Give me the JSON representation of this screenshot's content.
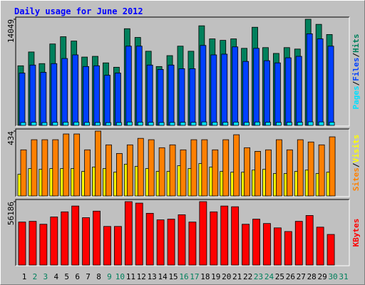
{
  "chart_data": [
    {
      "type": "bar",
      "title": "Daily usage for June 2012",
      "legend_separator": "/",
      "ylim": [
        0,
        14049
      ],
      "yticks": [
        14049
      ],
      "series": [
        {
          "name": "Pages",
          "color": "#00e0ff",
          "values": [
            480,
            510,
            470,
            500,
            520,
            530,
            490,
            480,
            460,
            470,
            540,
            520,
            500,
            480,
            490,
            510,
            500,
            550,
            520,
            510,
            530,
            500,
            540,
            510,
            490,
            500,
            510,
            560,
            550,
            520,
            null
          ]
        },
        {
          "name": "Files",
          "color": "#0040ff",
          "values": [
            6977,
            8028,
            7072,
            8219,
            8888,
            9366,
            7837,
            7932,
            6690,
            6977,
            10513,
            10513,
            8028,
            7455,
            8028,
            7550,
            7550,
            10609,
            9366,
            9462,
            10417,
            8506,
            10226,
            8601,
            8315,
            8984,
            9175,
            12138,
            11469,
            10513,
            null
          ]
        },
        {
          "name": "Hits",
          "color": "#00805c",
          "values": [
            7932,
            9748,
            8219,
            10800,
            11755,
            11182,
            9079,
            9175,
            8315,
            7741,
            12807,
            11660,
            9844,
            7837,
            9270,
            10513,
            9844,
            13189,
            11469,
            11277,
            11469,
            10226,
            12998,
            10322,
            9557,
            10322,
            10131,
            14049,
            13380,
            12042,
            null
          ]
        }
      ]
    },
    {
      "type": "bar",
      "legend_separator": "/",
      "ylim": [
        0,
        434
      ],
      "yticks": [
        434
      ],
      "series": [
        {
          "name": "Sites",
          "color": "#ff8000",
          "values": [
            310,
            377,
            377,
            377,
            415,
            415,
            310,
            434,
            343,
            286,
            343,
            386,
            377,
            324,
            343,
            310,
            377,
            377,
            310,
            377,
            410,
            324,
            300,
            310,
            377,
            310,
            377,
            362,
            343,
            396,
            null
          ]
        },
        {
          "name": "Visits",
          "color": "#ffff00",
          "values": [
            148,
            186,
            181,
            186,
            186,
            186,
            167,
            196,
            186,
            162,
            215,
            200,
            186,
            167,
            167,
            205,
            186,
            219,
            196,
            167,
            162,
            162,
            176,
            181,
            153,
            153,
            167,
            176,
            153,
            162,
            null
          ]
        }
      ]
    },
    {
      "type": "bar",
      "ylim": [
        0,
        56186
      ],
      "yticks": [
        56186
      ],
      "categories": [
        "1",
        "2",
        "3",
        "4",
        "5",
        "6",
        "7",
        "8",
        "9",
        "10",
        "11",
        "12",
        "13",
        "14",
        "15",
        "16",
        "17",
        "18",
        "19",
        "20",
        "21",
        "22",
        "23",
        "24",
        "25",
        "26",
        "27",
        "28",
        "29",
        "30",
        "31"
      ],
      "category_colors": [
        "#000000",
        "#00805c",
        "#00805c",
        "#000000",
        "#000000",
        "#000000",
        "#000000",
        "#000000",
        "#00805c",
        "#00805c",
        "#000000",
        "#000000",
        "#000000",
        "#000000",
        "#000000",
        "#00805c",
        "#00805c",
        "#000000",
        "#000000",
        "#000000",
        "#000000",
        "#000000",
        "#00805c",
        "#00805c",
        "#000000",
        "#000000",
        "#000000",
        "#000000",
        "#000000",
        "#00805c",
        "#00805c"
      ],
      "series": [
        {
          "name": "KBytes",
          "color": "#ff0000",
          "values": [
            38309,
            38947,
            36393,
            42778,
            47248,
            52354,
            42140,
            47885,
            34477,
            34477,
            56186,
            54909,
            45970,
            40224,
            40862,
            44693,
            38309,
            56186,
            47248,
            52354,
            51716,
            36393,
            40862,
            37031,
            33201,
            30008,
            38947,
            44055,
            33839,
            27454,
            null
          ]
        }
      ]
    }
  ]
}
